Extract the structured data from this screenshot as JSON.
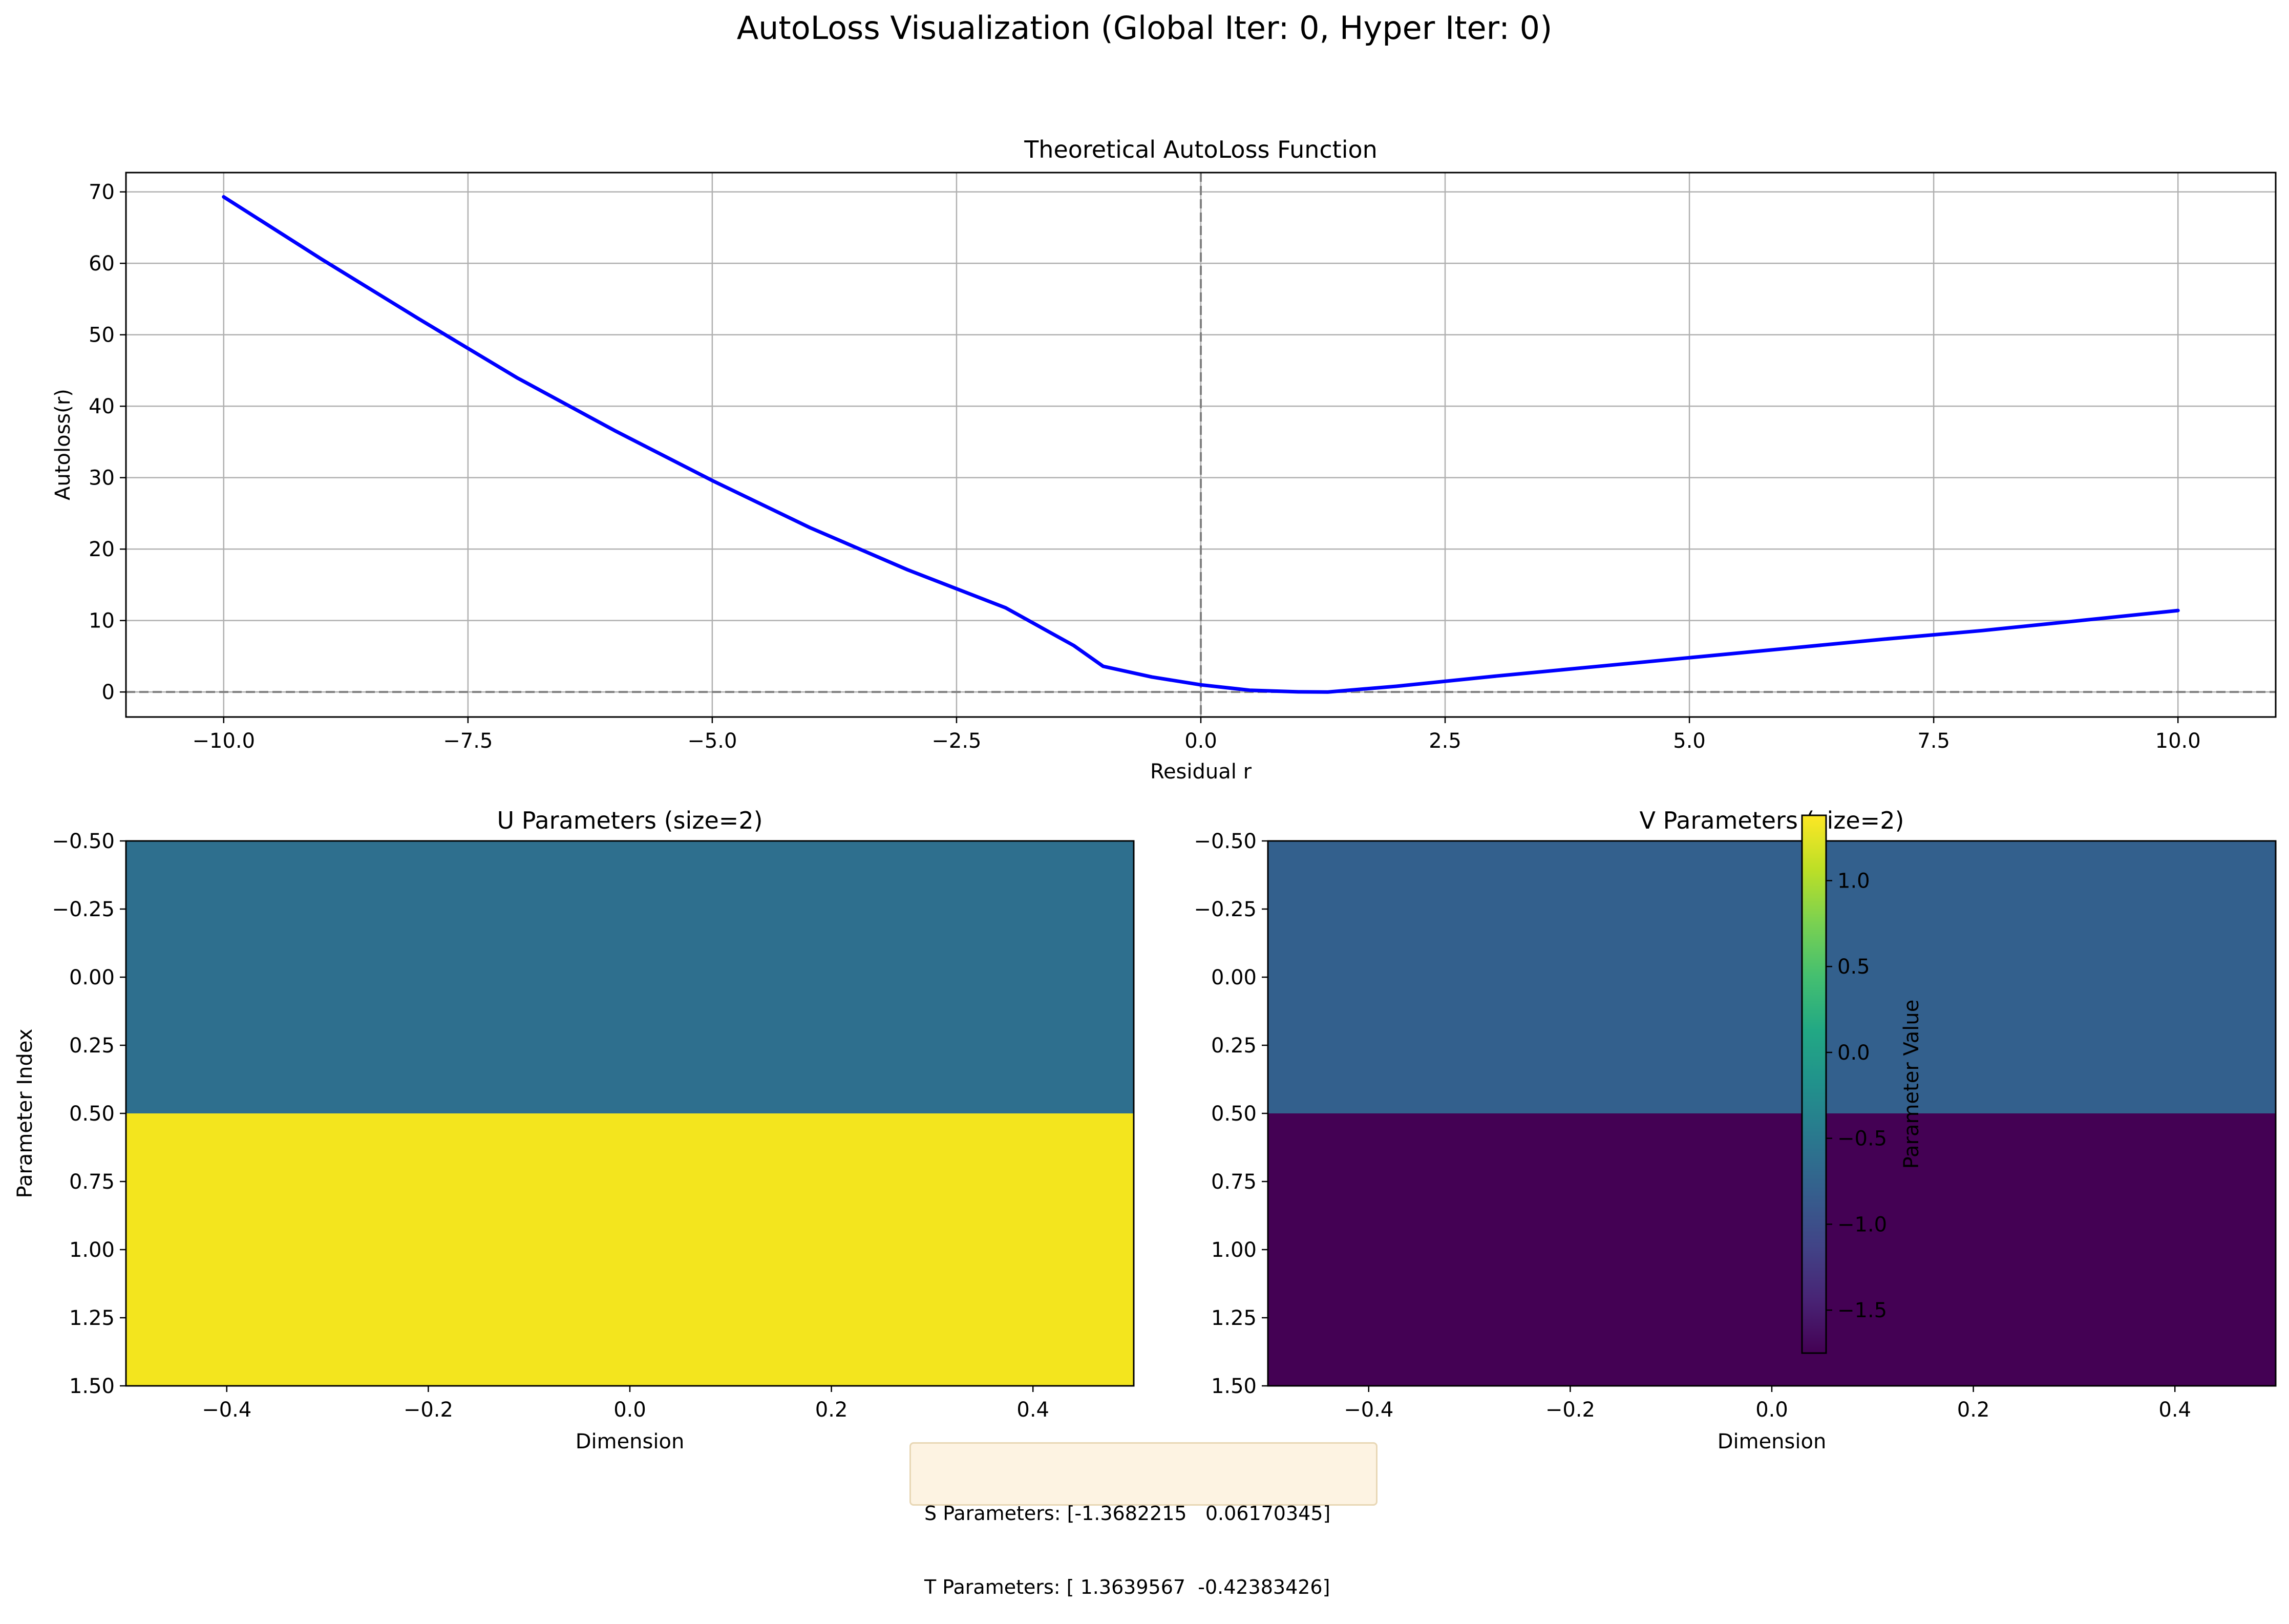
{
  "figure": {
    "suptitle": "AutoLoss Visualization (Global Iter: 0, Hyper Iter: 0)"
  },
  "chart_data": [
    {
      "type": "line",
      "title": "Theoretical AutoLoss Function",
      "xlabel": "Residual r",
      "ylabel": "Autoloss(r)",
      "xlim": [
        -11.0,
        11.0
      ],
      "ylim": [
        -3.5,
        72.7
      ],
      "xticks": [
        "−10.0",
        "−7.5",
        "−5.0",
        "−2.5",
        "0.0",
        "2.5",
        "5.0",
        "7.5",
        "10.0"
      ],
      "xtick_values": [
        -10,
        -7.5,
        -5,
        -2.5,
        0,
        2.5,
        5,
        7.5,
        10
      ],
      "yticks": [
        "0",
        "10",
        "20",
        "30",
        "40",
        "50",
        "60",
        "70"
      ],
      "ytick_values": [
        0,
        10,
        20,
        30,
        40,
        50,
        60,
        70
      ],
      "grid": true,
      "reference_lines": {
        "horizontal_y": 0,
        "vertical_x": 0,
        "style": "dashed",
        "color": "#808080"
      },
      "series": [
        {
          "color": "#0000ff",
          "x": [
            -10,
            -9,
            -8,
            -7,
            -6,
            -5,
            -4,
            -3,
            -2,
            -1.3,
            -1,
            -0.5,
            0,
            0.5,
            1,
            1.3,
            2,
            3,
            4,
            5,
            6,
            7,
            8,
            9,
            10
          ],
          "y": [
            69.3,
            60.6,
            52.2,
            44.0,
            36.6,
            29.6,
            23.0,
            17.1,
            11.8,
            6.5,
            3.6,
            2.1,
            1.0,
            0.25,
            0.02,
            0.0,
            0.8,
            2.2,
            3.5,
            4.8,
            6.1,
            7.4,
            8.6,
            10.0,
            11.4
          ]
        }
      ]
    },
    {
      "type": "heatmap",
      "title": "U Parameters (size=2)",
      "xlabel": "Dimension",
      "ylabel": "Parameter Index",
      "xlim": [
        -0.5,
        0.5
      ],
      "ylim": [
        1.5,
        -0.5
      ],
      "xticks": [
        "−0.4",
        "−0.2",
        "0.0",
        "0.2",
        "0.4"
      ],
      "xtick_values": [
        -0.4,
        -0.2,
        0.0,
        0.2,
        0.4
      ],
      "yticks": [
        "−0.50",
        "−0.25",
        "0.00",
        "0.25",
        "0.50",
        "0.75",
        "1.00",
        "1.25",
        "1.50"
      ],
      "ytick_values": [
        -0.5,
        -0.25,
        0,
        0.25,
        0.5,
        0.75,
        1.0,
        1.25,
        1.5
      ],
      "values": [
        [
          -0.42
        ],
        [
          1.36
        ]
      ],
      "cell_colors": [
        "#2e6f8e",
        "#f3e51e"
      ]
    },
    {
      "type": "heatmap",
      "title": "V Parameters (size=2)",
      "xlabel": "Dimension",
      "ylabel": "",
      "xlim": [
        -0.5,
        0.5
      ],
      "ylim": [
        1.5,
        -0.5
      ],
      "xticks": [
        "−0.4",
        "−0.2",
        "0.0",
        "0.2",
        "0.4"
      ],
      "xtick_values": [
        -0.4,
        -0.2,
        0.0,
        0.2,
        0.4
      ],
      "yticks": [
        "−0.50",
        "−0.25",
        "0.00",
        "0.25",
        "0.50",
        "0.75",
        "1.00",
        "1.25",
        "1.50"
      ],
      "ytick_values": [
        -0.5,
        -0.25,
        0,
        0.25,
        0.5,
        0.75,
        1.0,
        1.25,
        1.5
      ],
      "values": [
        [
          -0.9
        ],
        [
          -1.75
        ]
      ],
      "cell_colors": [
        "#33608d",
        "#440154"
      ],
      "colorbar": {
        "label": "Parameter Value",
        "range": [
          -1.75,
          1.38
        ],
        "ticks": [
          "−1.5",
          "−1.0",
          "−0.5",
          "0.0",
          "0.5",
          "1.0"
        ],
        "tick_values": [
          -1.5,
          -1.0,
          -0.5,
          0.0,
          0.5,
          1.0
        ],
        "colormap": "viridis"
      }
    }
  ],
  "params_box": {
    "s_line": "S Parameters: [-1.3682215   0.06170345]",
    "t_line": "T Parameters: [ 1.3639567  -0.42383426]"
  }
}
